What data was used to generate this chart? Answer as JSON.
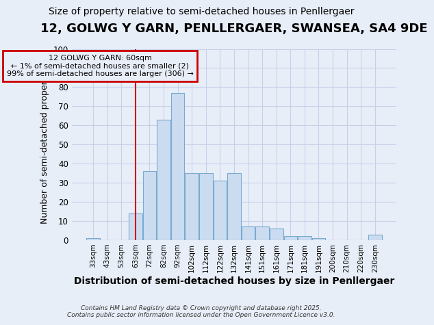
{
  "title": "12, GOLWG Y GARN, PENLLERGAER, SWANSEA, SA4 9DE",
  "subtitle": "Size of property relative to semi-detached houses in Penllergaer",
  "xlabel": "Distribution of semi-detached houses by size in Penllergaer",
  "ylabel": "Number of semi-detached properties",
  "categories": [
    "33sqm",
    "43sqm",
    "53sqm",
    "63sqm",
    "72sqm",
    "82sqm",
    "92sqm",
    "102sqm",
    "112sqm",
    "122sqm",
    "132sqm",
    "141sqm",
    "151sqm",
    "161sqm",
    "171sqm",
    "181sqm",
    "191sqm",
    "200sqm",
    "210sqm",
    "220sqm",
    "230sqm"
  ],
  "values": [
    1,
    0,
    0,
    14,
    36,
    63,
    77,
    35,
    35,
    31,
    35,
    7,
    7,
    6,
    2,
    2,
    1,
    0,
    0,
    0,
    3
  ],
  "bar_color": "#ccdcf0",
  "bar_edgecolor": "#7aaad0",
  "vline_index": 3,
  "vline_color": "#cc0000",
  "annotation_text": "12 GOLWG Y GARN: 60sqm\n← 1% of semi-detached houses are smaller (2)\n99% of semi-detached houses are larger (306) →",
  "annotation_box_edgecolor": "#cc0000",
  "background_color": "#e8eef8",
  "grid_color": "#c8d0e8",
  "footer": "Contains HM Land Registry data © Crown copyright and database right 2025.\nContains public sector information licensed under the Open Government Licence v3.0.",
  "ylim": [
    0,
    100
  ],
  "title_fontsize": 13,
  "subtitle_fontsize": 10,
  "xlabel_fontsize": 10,
  "ylabel_fontsize": 9
}
